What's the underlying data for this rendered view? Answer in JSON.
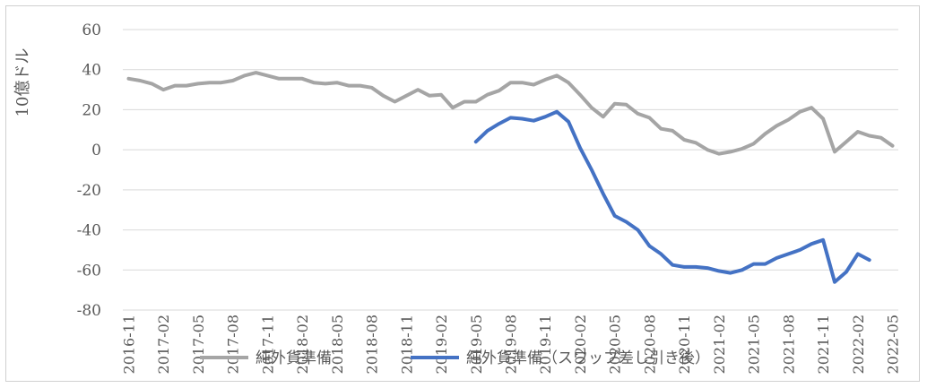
{
  "chart_data": {
    "type": "line",
    "title": "",
    "xlabel": "",
    "ylabel": "10億ドル",
    "ylim": [
      -80,
      60
    ],
    "yticks": [
      "60",
      "40",
      "20",
      "0",
      "-20",
      "-40",
      "-60",
      "-80"
    ],
    "grid": true,
    "legend_position": "bottom",
    "x_tick_labels": [
      "2016-11",
      "2017-02",
      "2017-05",
      "2017-08",
      "2017-11",
      "2018-02",
      "2018-05",
      "2018-08",
      "2018-11",
      "2019-02",
      "2019-05",
      "2019-08",
      "2019-11",
      "2020-02",
      "2020-05",
      "2020-08",
      "2020-11",
      "2021-02",
      "2021-05",
      "2021-08",
      "2021-11",
      "2022-02",
      "2022-05"
    ],
    "x": [
      "2016-11",
      "2016-12",
      "2017-01",
      "2017-02",
      "2017-03",
      "2017-04",
      "2017-05",
      "2017-06",
      "2017-07",
      "2017-08",
      "2017-09",
      "2017-10",
      "2017-11",
      "2017-12",
      "2018-01",
      "2018-02",
      "2018-03",
      "2018-04",
      "2018-05",
      "2018-06",
      "2018-07",
      "2018-08",
      "2018-09",
      "2018-10",
      "2018-11",
      "2018-12",
      "2019-01",
      "2019-02",
      "2019-03",
      "2019-04",
      "2019-05",
      "2019-06",
      "2019-07",
      "2019-08",
      "2019-09",
      "2019-10",
      "2019-11",
      "2019-12",
      "2020-01",
      "2020-02",
      "2020-03",
      "2020-04",
      "2020-05",
      "2020-06",
      "2020-07",
      "2020-08",
      "2020-09",
      "2020-10",
      "2020-11",
      "2020-12",
      "2021-01",
      "2021-02",
      "2021-03",
      "2021-04",
      "2021-05",
      "2021-06",
      "2021-07",
      "2021-08",
      "2021-09",
      "2021-10",
      "2021-11",
      "2021-12",
      "2022-01",
      "2022-02",
      "2022-03",
      "2022-04",
      "2022-05"
    ],
    "series": [
      {
        "name": "純外貨準備",
        "color": "#a5a5a5",
        "values": [
          35.5,
          34.5,
          33,
          30,
          32,
          32,
          33,
          33.5,
          33.5,
          34.5,
          37,
          38.5,
          37,
          35.5,
          35.5,
          35.5,
          33.5,
          33,
          33.5,
          32,
          32,
          31,
          27,
          24,
          27,
          30,
          27,
          27.5,
          21,
          24,
          24,
          27.5,
          29.5,
          33.5,
          33.5,
          32.5,
          35,
          37,
          33.5,
          27.5,
          21,
          16.5,
          23,
          22.5,
          18,
          16,
          10.5,
          9.5,
          5,
          3.5,
          0,
          -2,
          -1,
          0.5,
          3,
          8,
          12,
          15,
          19,
          21,
          15.5,
          -1,
          4,
          9,
          7,
          6,
          2
        ]
      },
      {
        "name": "純外貨準備（スワップ差し引き後）",
        "color": "#4472c4",
        "values": [
          null,
          null,
          null,
          null,
          null,
          null,
          null,
          null,
          null,
          null,
          null,
          null,
          null,
          null,
          null,
          null,
          null,
          null,
          null,
          null,
          null,
          null,
          null,
          null,
          null,
          null,
          null,
          null,
          null,
          null,
          4,
          9.5,
          13,
          16,
          15.5,
          14.5,
          16.5,
          19,
          14,
          1,
          -10,
          -22,
          -33,
          -36,
          -40,
          -48,
          -52,
          -57.5,
          -58.5,
          -58.5,
          -59,
          -60.5,
          -61.5,
          -60,
          -57,
          -57,
          -54,
          -52,
          -50,
          -47,
          -45,
          -66,
          -61,
          -52,
          -55,
          null,
          null
        ]
      }
    ]
  }
}
